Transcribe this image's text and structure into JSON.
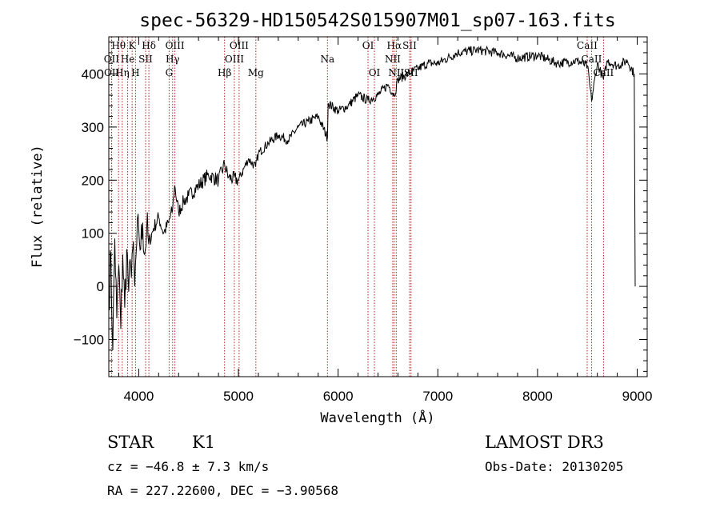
{
  "chart_data": {
    "type": "line",
    "title": "spec-56329-HD150542S015907M01_sp07-163.fits",
    "xlabel": "Wavelength (Å)",
    "ylabel": "Flux (relative)",
    "xlim": [
      3700,
      9100
    ],
    "ylim": [
      -170,
      470
    ],
    "xticks": [
      4000,
      5000,
      6000,
      7000,
      8000,
      9000
    ],
    "yticks": [
      -100,
      0,
      100,
      200,
      300,
      400
    ],
    "xtick_labels": [
      "4000",
      "5000",
      "6000",
      "7000",
      "8000",
      "9000"
    ],
    "ytick_labels": [
      "−100",
      "0",
      "100",
      "200",
      "300",
      "400"
    ],
    "series": [
      {
        "name": "spectrum",
        "x": [
          3700,
          3720,
          3740,
          3760,
          3780,
          3800,
          3820,
          3840,
          3860,
          3880,
          3900,
          3920,
          3940,
          3960,
          3980,
          4000,
          4020,
          4040,
          4060,
          4080,
          4100,
          4150,
          4200,
          4250,
          4300,
          4340,
          4360,
          4400,
          4450,
          4500,
          4600,
          4700,
          4800,
          4861,
          4900,
          5000,
          5100,
          5172,
          5200,
          5300,
          5400,
          5500,
          5600,
          5700,
          5800,
          5893,
          5900,
          6000,
          6100,
          6200,
          6300,
          6400,
          6500,
          6563,
          6600,
          6700,
          6800,
          6900,
          7000,
          7200,
          7400,
          7600,
          7800,
          8000,
          8200,
          8400,
          8500,
          8542,
          8600,
          8662,
          8700,
          8800,
          8900,
          8970,
          8980
        ],
        "y": [
          -30,
          60,
          -120,
          90,
          -60,
          40,
          -80,
          60,
          -40,
          70,
          -10,
          40,
          70,
          0,
          80,
          110,
          70,
          120,
          60,
          110,
          80,
          110,
          130,
          100,
          120,
          145,
          190,
          140,
          160,
          170,
          190,
          210,
          200,
          230,
          205,
          200,
          240,
          225,
          250,
          270,
          285,
          275,
          300,
          310,
          320,
          280,
          345,
          330,
          340,
          360,
          350,
          360,
          380,
          360,
          390,
          400,
          410,
          420,
          420,
          440,
          445,
          440,
          430,
          435,
          420,
          425,
          415,
          350,
          420,
          390,
          425,
          415,
          425,
          400,
          0
        ]
      }
    ],
    "line_markers": [
      {
        "label": "Hθ",
        "x": 3798,
        "row": 0
      },
      {
        "label": "K",
        "x": 3934,
        "row": 0
      },
      {
        "label": "Hδ",
        "x": 4102,
        "row": 0
      },
      {
        "label": "OIII",
        "x": 4363,
        "row": 0
      },
      {
        "label": "OIII",
        "x": 5007,
        "row": 0
      },
      {
        "label": "OI",
        "x": 6300,
        "row": 0
      },
      {
        "label": "Hα",
        "x": 6563,
        "row": 0
      },
      {
        "label": "SII",
        "x": 6717,
        "row": 0
      },
      {
        "label": "CaII",
        "x": 8498,
        "row": 0
      },
      {
        "label": "OII",
        "x": 3727,
        "row": 1
      },
      {
        "label": "He",
        "x": 3889,
        "row": 1
      },
      {
        "label": "SII",
        "x": 4069,
        "row": 1
      },
      {
        "label": "Hγ",
        "x": 4340,
        "row": 1
      },
      {
        "label": "OIII",
        "x": 4959,
        "row": 1
      },
      {
        "label": "Na",
        "x": 5893,
        "row": 1
      },
      {
        "label": "NII",
        "x": 6548,
        "row": 1
      },
      {
        "label": "CaII",
        "x": 8542,
        "row": 1
      },
      {
        "label": "OII",
        "x": 3729,
        "row": 2
      },
      {
        "label": "Hη",
        "x": 3835,
        "row": 2
      },
      {
        "label": "H",
        "x": 3968,
        "row": 2
      },
      {
        "label": "G",
        "x": 4305,
        "row": 2
      },
      {
        "label": "Hβ",
        "x": 4861,
        "row": 2
      },
      {
        "label": "Mg",
        "x": 5175,
        "row": 2
      },
      {
        "label": "OI",
        "x": 6364,
        "row": 2
      },
      {
        "label": "NII",
        "x": 6583,
        "row": 2
      },
      {
        "label": "SII",
        "x": 6731,
        "row": 2
      },
      {
        "label": "CaII",
        "x": 8662,
        "row": 2
      }
    ]
  },
  "info": {
    "object_class": "STAR",
    "subclass": "K1",
    "survey": "LAMOST DR3",
    "cz": "cz = −46.8 ± 7.3 km/s",
    "obs_date": "Obs-Date: 20130205",
    "coords": "RA = 227.22600, DEC =  −3.90568"
  },
  "colors": {
    "spectrum": "#000000",
    "line_marker": "#b22222"
  }
}
